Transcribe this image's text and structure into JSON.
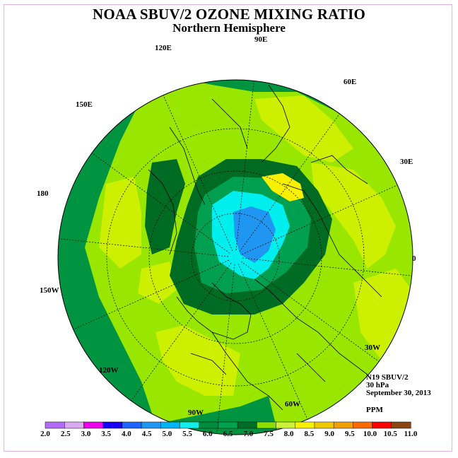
{
  "title": "NOAA SBUV/2 OZONE MIXING RATIO",
  "subtitle": "Northern Hemisphere",
  "longitude_labels": [
    "90E",
    "60E",
    "30E",
    "0",
    "30W",
    "60W",
    "90W",
    "120W",
    "150W",
    "180",
    "150E",
    "120E"
  ],
  "info": {
    "satellite": "N19 SBUV/2",
    "level": "30 hPa",
    "date": "September 30, 2013",
    "units": "PPM"
  },
  "colorbar": {
    "ticks": [
      "2.0",
      "2.5",
      "3.0",
      "3.5",
      "4.0",
      "4.5",
      "5.0",
      "5.5",
      "6.0",
      "6.5",
      "7.0",
      "7.5",
      "8.0",
      "8.5",
      "9.0",
      "9.5",
      "10.0",
      "10.5",
      "11.0"
    ],
    "colors": [
      "#b36cf5",
      "#d9aaf2",
      "#ee00ee",
      "#1a00f0",
      "#1f64ff",
      "#1e96f2",
      "#00b3f5",
      "#12eeee",
      "#008a3d",
      "#00a24f",
      "#006d26",
      "#8fde00",
      "#ccf03c",
      "#f7f000",
      "#f0c800",
      "#f0a000",
      "#ff6a00",
      "#ff0000",
      "#8b4513"
    ]
  },
  "map_fill_colors": {
    "outer_band": "#009440",
    "base": "#99e600",
    "light": "#ccf000",
    "polar_ring": "#006b23",
    "polar_inner": "#00a050",
    "cyan": "#00eeee",
    "blue": "#1e96f2",
    "yellow": "#f7f000"
  }
}
